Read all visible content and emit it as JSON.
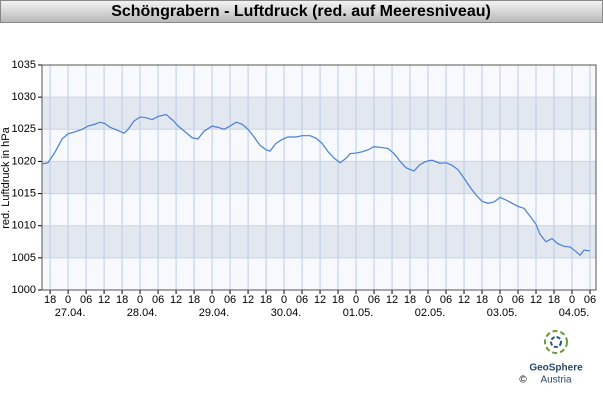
{
  "chart_data": {
    "type": "line",
    "title": "Schöngrabern - Luftdruck (red. auf Meeresniveau)",
    "y_label": "red. Luftdruck in hPa",
    "x": [
      -8.7,
      -6.7,
      -4.3,
      -2,
      0,
      2.3,
      4.7,
      6.7,
      9,
      10.7,
      12.3,
      14,
      16.7,
      18.7,
      20,
      22,
      24,
      26,
      28,
      30,
      32.7,
      34.7,
      36.7,
      39.3,
      41.3,
      43.3,
      45.3,
      48,
      50,
      52,
      54,
      56,
      58,
      60,
      62,
      64,
      66,
      67.3,
      69.3,
      71.3,
      73.3,
      76,
      78,
      80.7,
      82.7,
      84.7,
      86.7,
      88.7,
      90.7,
      92.7,
      94,
      96,
      98,
      100,
      102,
      104,
      106.7,
      108.7,
      110.7,
      112.7,
      115.3,
      117.3,
      119.3,
      121.3,
      124,
      126,
      128,
      130,
      132,
      134,
      136,
      138,
      140,
      142,
      144,
      146,
      148,
      150,
      152,
      154,
      156,
      157.3,
      159.3,
      161.3,
      163.3,
      165.3,
      167.3,
      169.3,
      170.7,
      172,
      174
    ],
    "series": [
      {
        "name": "Luftdruck",
        "color": "#4a7fd6",
        "values": [
          1019.6,
          1019.8,
          1021.5,
          1023.5,
          1024.3,
          1024.6,
          1025,
          1025.5,
          1025.8,
          1026.1,
          1025.9,
          1025.3,
          1024.8,
          1024.4,
          1025,
          1026.3,
          1026.9,
          1026.8,
          1026.5,
          1027,
          1027.3,
          1026.5,
          1025.5,
          1024.5,
          1023.7,
          1023.5,
          1024.7,
          1025.5,
          1025.3,
          1025,
          1025.5,
          1026.1,
          1025.8,
          1025,
          1023.8,
          1022.5,
          1021.8,
          1021.6,
          1022.8,
          1023.4,
          1023.8,
          1023.8,
          1024,
          1024,
          1023.6,
          1022.8,
          1021.5,
          1020.5,
          1019.8,
          1020.5,
          1021.2,
          1021.3,
          1021.5,
          1021.8,
          1022.3,
          1022.2,
          1022,
          1021.2,
          1020,
          1019,
          1018.5,
          1019.5,
          1020,
          1020.2,
          1019.7,
          1019.8,
          1019.4,
          1018.7,
          1017.4,
          1016,
          1014.8,
          1013.8,
          1013.5,
          1013.7,
          1014.4,
          1014,
          1013.5,
          1013,
          1012.7,
          1011.5,
          1010.2,
          1008.7,
          1007.5,
          1008,
          1007.2,
          1006.8,
          1006.7,
          1006,
          1005.4,
          1006.2,
          1006.1
        ]
      }
    ],
    "xlim": [
      -8.7,
      176
    ],
    "xticks": [
      {
        "value": -6,
        "label": "18"
      },
      0,
      {
        "value": 6,
        "label": "06"
      },
      12,
      18,
      {
        "value": 24,
        "label": "0"
      },
      {
        "value": 30,
        "label": "06"
      },
      {
        "value": 36,
        "label": "12"
      },
      {
        "value": 42,
        "label": "18"
      },
      {
        "value": 48,
        "label": "0"
      },
      {
        "value": 54,
        "label": "06"
      },
      {
        "value": 60,
        "label": "12"
      },
      {
        "value": 66,
        "label": "18"
      },
      {
        "value": 72,
        "label": "0"
      },
      {
        "value": 78,
        "label": "06"
      },
      {
        "value": 84,
        "label": "12"
      },
      {
        "value": 90,
        "label": "18"
      },
      {
        "value": 96,
        "label": "0"
      },
      {
        "value": 102,
        "label": "06"
      },
      {
        "value": 108,
        "label": "12"
      },
      {
        "value": 114,
        "label": "18"
      },
      {
        "value": 120,
        "label": "0"
      },
      {
        "value": 126,
        "label": "06"
      },
      {
        "value": 132,
        "label": "12"
      },
      {
        "value": 138,
        "label": "18"
      },
      {
        "value": 144,
        "label": "0"
      },
      {
        "value": 150,
        "label": "06"
      },
      {
        "value": 156,
        "label": "12"
      },
      {
        "value": 162,
        "label": "18"
      },
      {
        "value": 168,
        "label": "0"
      },
      {
        "value": 174,
        "label": "06"
      }
    ],
    "day_labels": [
      "27.04.",
      "28.04.",
      "29.04.",
      "30.04.",
      "01.05.",
      "02.05.",
      "03.05.",
      "04.05."
    ],
    "ylim": [
      1000,
      1035
    ],
    "yticks": [
      1000,
      1005,
      1010,
      1015,
      1020,
      1025,
      1030,
      1035
    ],
    "grid": true
  },
  "logo": {
    "name": "GeoSphere",
    "sub": "Austria",
    "copyright": "©"
  }
}
